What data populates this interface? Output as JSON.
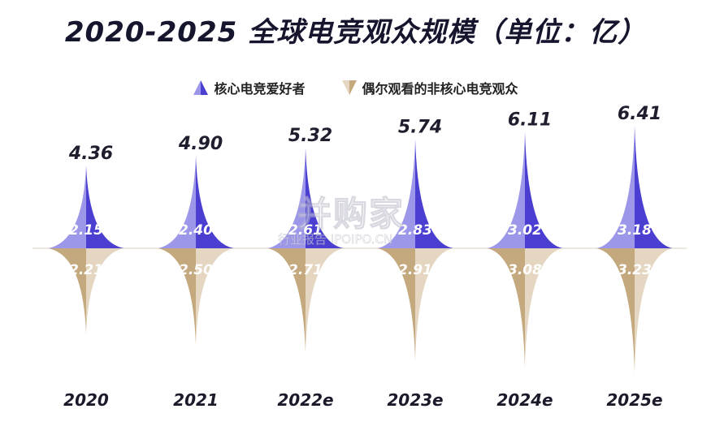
{
  "chart_data": {
    "type": "area",
    "title": "2020-2025 全球电竞观众规模（单位：亿）",
    "categories": [
      "2020",
      "2021",
      "2022e",
      "2023e",
      "2024e",
      "2025e"
    ],
    "totals": [
      4.36,
      4.9,
      5.32,
      5.74,
      6.11,
      6.41
    ],
    "series": [
      {
        "name": "核心电竞爱好者",
        "values": [
          2.15,
          2.4,
          2.61,
          2.83,
          3.02,
          3.18
        ]
      },
      {
        "name": "偶尔观看的非核心电竞观众",
        "values": [
          2.21,
          2.5,
          2.71,
          2.91,
          3.08,
          3.23
        ]
      }
    ],
    "colors": {
      "core_light": "#9d97ea",
      "core_dark": "#4a3fd0",
      "casual_light": "#e4d6c0",
      "casual_dark": "#c4a97f",
      "title": "#15152e"
    },
    "legend_position": "top-center"
  },
  "watermark": {
    "main": "并购家",
    "sub": "行业报告 IPOIPO.CN"
  }
}
